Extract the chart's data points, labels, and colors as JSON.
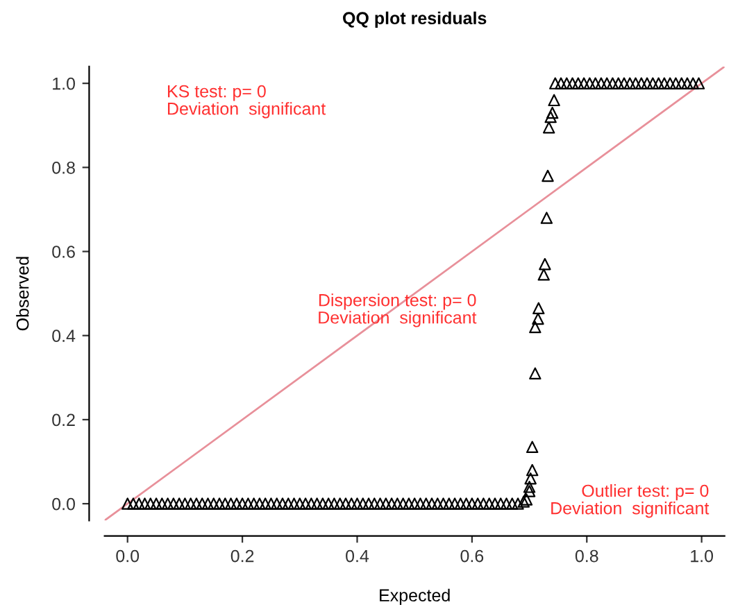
{
  "chart_data": {
    "type": "scatter",
    "title": "QQ plot residuals",
    "xlabel": "Expected",
    "ylabel": "Observed",
    "xlim": [
      -0.04,
      1.04
    ],
    "ylim": [
      -0.04,
      1.04
    ],
    "xticks": [
      {
        "value": 0,
        "label": "0.0"
      },
      0.2,
      0.4,
      0.6,
      0.8,
      {
        "value": 1,
        "label": "1.0"
      }
    ],
    "yticks": [
      {
        "value": 0,
        "label": "0.0"
      },
      0.2,
      0.4,
      0.6,
      0.8,
      {
        "value": 1,
        "label": "1.0"
      }
    ],
    "grid": false,
    "legend": false,
    "marker": "triangle",
    "series": [
      {
        "color": "#000000",
        "x": [
          0.0,
          0.01,
          0.02,
          0.03,
          0.04,
          0.05,
          0.06,
          0.07,
          0.08,
          0.09,
          0.1,
          0.11,
          0.12,
          0.13,
          0.14,
          0.15,
          0.16,
          0.17,
          0.18,
          0.19,
          0.2,
          0.21,
          0.22,
          0.23,
          0.24,
          0.25,
          0.26,
          0.27,
          0.28,
          0.29,
          0.3,
          0.31,
          0.32,
          0.33,
          0.34,
          0.35,
          0.36,
          0.37,
          0.38,
          0.39,
          0.4,
          0.41,
          0.42,
          0.43,
          0.44,
          0.45,
          0.46,
          0.47,
          0.48,
          0.49,
          0.5,
          0.51,
          0.52,
          0.53,
          0.54,
          0.55,
          0.56,
          0.57,
          0.58,
          0.59,
          0.6,
          0.61,
          0.62,
          0.63,
          0.64,
          0.65,
          0.66,
          0.67,
          0.68,
          0.69,
          0.695,
          0.7,
          0.7,
          0.702,
          0.705,
          0.705,
          0.71,
          0.71,
          0.715,
          0.716,
          0.725,
          0.727,
          0.73,
          0.732,
          0.734,
          0.737,
          0.74,
          0.743,
          0.745,
          0.755,
          0.765,
          0.775,
          0.785,
          0.795,
          0.805,
          0.815,
          0.825,
          0.835,
          0.845,
          0.855,
          0.865,
          0.875,
          0.885,
          0.895,
          0.905,
          0.915,
          0.925,
          0.935,
          0.945,
          0.955,
          0.965,
          0.975,
          0.985,
          0.995
        ],
        "values": [
          0,
          0,
          0,
          0,
          0,
          0,
          0,
          0,
          0,
          0,
          0,
          0,
          0,
          0,
          0,
          0,
          0,
          0,
          0,
          0,
          0,
          0,
          0,
          0,
          0,
          0,
          0,
          0,
          0,
          0,
          0,
          0,
          0,
          0,
          0,
          0,
          0,
          0,
          0,
          0,
          0,
          0,
          0,
          0,
          0,
          0,
          0,
          0,
          0,
          0,
          0,
          0,
          0,
          0,
          0,
          0,
          0,
          0,
          0,
          0,
          0,
          0,
          0,
          0,
          0,
          0,
          0,
          0,
          0,
          0.005,
          0.01,
          0.03,
          0.04,
          0.06,
          0.08,
          0.135,
          0.31,
          0.42,
          0.44,
          0.465,
          0.545,
          0.57,
          0.68,
          0.78,
          0.895,
          0.92,
          0.93,
          0.96,
          1,
          1,
          1,
          1,
          1,
          1,
          1,
          1,
          1,
          1,
          1,
          1,
          1,
          1,
          1,
          1,
          1,
          1,
          1,
          1,
          1,
          1,
          1,
          1,
          1,
          1
        ]
      },
      {
        "type": "line",
        "color": "#e8909a",
        "marker": "none",
        "line_style": "solid",
        "x": [
          -0.04,
          1.04
        ],
        "values": [
          -0.04,
          1.04
        ]
      }
    ],
    "annotations": [
      "KS test: p= 0\nDeviation  significant",
      "Dispersion test: p= 0\nDeviation  significant",
      "Outlier test: p= 0\nDeviation  significant"
    ]
  }
}
